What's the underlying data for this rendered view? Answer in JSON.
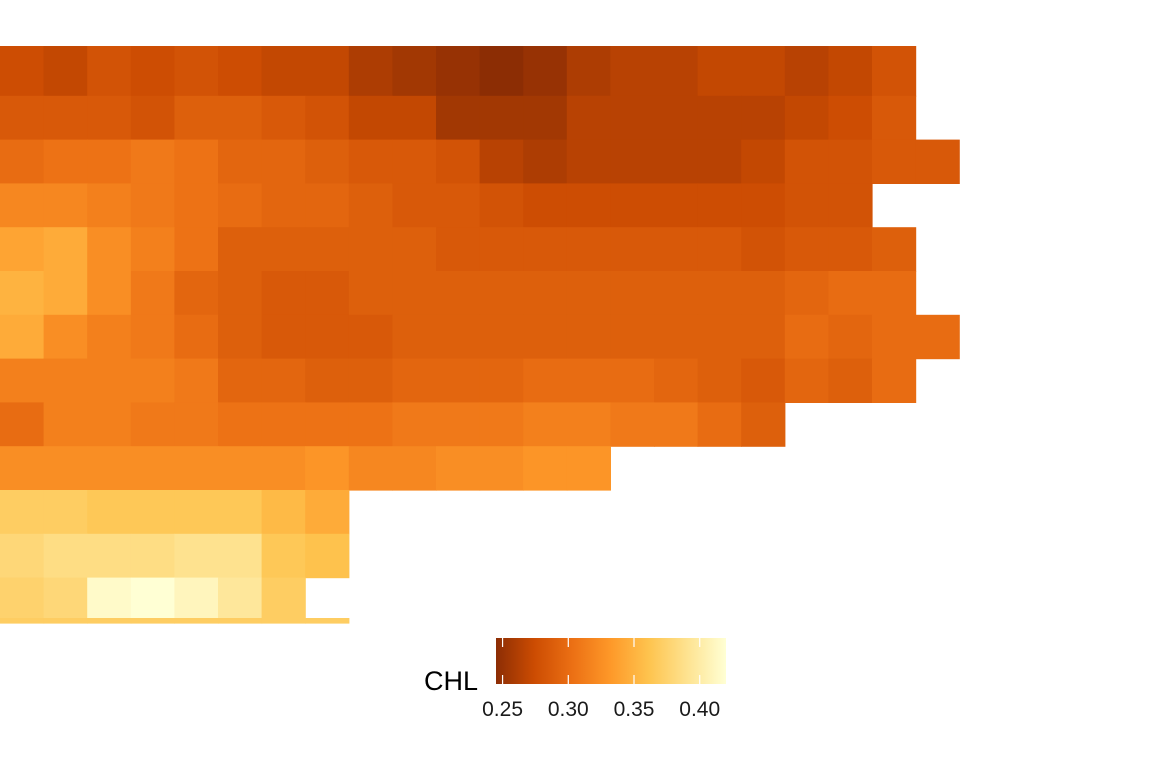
{
  "chart_data": {
    "type": "heatmap",
    "variable": "CHL",
    "legend": {
      "title": "CHL",
      "position": "bottom",
      "range": [
        0.245,
        0.42
      ],
      "ticks": [
        0.25,
        0.3,
        0.35,
        0.4
      ],
      "tick_labels": [
        "0.25",
        "0.30",
        "0.35",
        "0.40"
      ],
      "palette": [
        "#8c2d04",
        "#cc4c02",
        "#ec7014",
        "#fe9929",
        "#fec44f",
        "#fee391",
        "#ffffd4"
      ]
    },
    "grid": false,
    "rows": [
      {
        "start": 0,
        "values": [
          0.275,
          0.27,
          0.28,
          0.275,
          0.28,
          0.275,
          0.27,
          0.27,
          0.26,
          0.255,
          0.25,
          0.245,
          0.25,
          0.26,
          0.265,
          0.265,
          0.27,
          0.27,
          0.265,
          0.27,
          0.28
        ]
      },
      {
        "start": 0,
        "values": [
          0.285,
          0.285,
          0.285,
          0.28,
          0.29,
          0.29,
          0.285,
          0.28,
          0.27,
          0.27,
          0.255,
          0.255,
          0.255,
          0.265,
          0.265,
          0.265,
          0.265,
          0.265,
          0.27,
          0.275,
          0.285
        ]
      },
      {
        "start": 0,
        "values": [
          0.3,
          0.305,
          0.305,
          0.31,
          0.305,
          0.295,
          0.295,
          0.29,
          0.285,
          0.285,
          0.28,
          0.265,
          0.26,
          0.265,
          0.265,
          0.265,
          0.265,
          0.27,
          0.28,
          0.28,
          0.285,
          0.285
        ]
      },
      {
        "start": 0,
        "values": [
          0.32,
          0.32,
          0.315,
          0.31,
          0.305,
          0.3,
          0.295,
          0.295,
          0.29,
          0.285,
          0.285,
          0.28,
          0.275,
          0.275,
          0.275,
          0.275,
          0.275,
          0.275,
          0.28,
          0.28
        ]
      },
      {
        "start": 0,
        "values": [
          0.34,
          0.345,
          0.325,
          0.315,
          0.305,
          0.29,
          0.29,
          0.29,
          0.29,
          0.29,
          0.285,
          0.285,
          0.285,
          0.285,
          0.285,
          0.285,
          0.285,
          0.28,
          0.285,
          0.285,
          0.29
        ]
      },
      {
        "start": 0,
        "values": [
          0.35,
          0.345,
          0.325,
          0.31,
          0.295,
          0.29,
          0.285,
          0.285,
          0.29,
          0.29,
          0.29,
          0.29,
          0.29,
          0.29,
          0.29,
          0.29,
          0.29,
          0.29,
          0.295,
          0.3,
          0.3
        ]
      },
      {
        "start": 0,
        "values": [
          0.345,
          0.325,
          0.315,
          0.31,
          0.3,
          0.29,
          0.285,
          0.285,
          0.285,
          0.29,
          0.29,
          0.29,
          0.29,
          0.29,
          0.29,
          0.29,
          0.29,
          0.29,
          0.3,
          0.295,
          0.3,
          0.3
        ]
      },
      {
        "start": 0,
        "values": [
          0.315,
          0.315,
          0.315,
          0.315,
          0.31,
          0.295,
          0.295,
          0.29,
          0.29,
          0.295,
          0.295,
          0.295,
          0.3,
          0.3,
          0.3,
          0.295,
          0.29,
          0.285,
          0.295,
          0.29,
          0.3
        ]
      },
      {
        "start": 0,
        "values": [
          0.3,
          0.315,
          0.315,
          0.31,
          0.31,
          0.305,
          0.305,
          0.305,
          0.305,
          0.31,
          0.31,
          0.31,
          0.315,
          0.315,
          0.31,
          0.31,
          0.3,
          0.29
        ]
      },
      {
        "start": 0,
        "values": [
          0.325,
          0.325,
          0.325,
          0.325,
          0.325,
          0.325,
          0.325,
          0.33,
          0.32,
          0.32,
          0.325,
          0.325,
          0.33,
          0.33
        ]
      },
      {
        "start": 0,
        "values": [
          0.37,
          0.37,
          0.365,
          0.365,
          0.365,
          0.365,
          0.355,
          0.345
        ]
      },
      {
        "start": 0,
        "values": [
          0.38,
          0.385,
          0.385,
          0.385,
          0.39,
          0.39,
          0.365,
          0.36
        ]
      },
      {
        "start": 0,
        "values": [
          0.375,
          0.38,
          0.415,
          0.42,
          0.41,
          0.395,
          0.37
        ]
      },
      {
        "start": 0,
        "values": [
          0.37,
          0.37,
          0.37,
          0.37,
          0.37,
          0.37,
          0.37,
          0.37
        ]
      }
    ]
  }
}
